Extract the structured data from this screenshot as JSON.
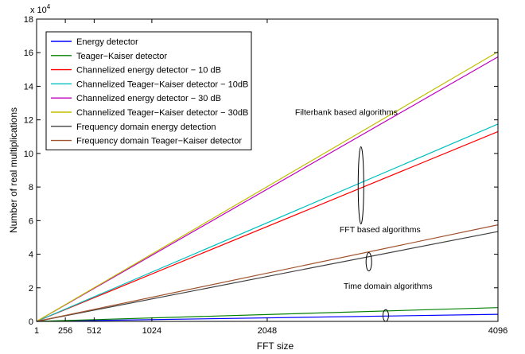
{
  "chart_data": {
    "type": "line",
    "xlabel": "FFT size",
    "ylabel": "Number of real multiplications",
    "y_exponent_label": "x 10",
    "y_exponent_power": "4",
    "xlim": [
      1,
      4096
    ],
    "ylim": [
      0,
      180000
    ],
    "x_ticks": [
      1,
      256,
      512,
      1024,
      2048,
      4096
    ],
    "y_ticks": [
      0,
      20000,
      40000,
      60000,
      80000,
      100000,
      120000,
      140000,
      160000,
      180000
    ],
    "y_tick_labels": [
      "0",
      "2",
      "4",
      "6",
      "8",
      "10",
      "12",
      "14",
      "16",
      "18"
    ],
    "grid": false,
    "legend_position": "top-left",
    "series": [
      {
        "name": "Energy detector",
        "color": "#0000ff",
        "x": [
          1,
          4096
        ],
        "y": [
          0,
          4200
        ]
      },
      {
        "name": "Teager−Kaiser detector",
        "color": "#008000",
        "x": [
          1,
          4096
        ],
        "y": [
          0,
          8200
        ]
      },
      {
        "name": "Channelized energy detector − 10 dB",
        "color": "#ff0000",
        "x": [
          1,
          4096
        ],
        "y": [
          0,
          113000
        ]
      },
      {
        "name": "Channelized Teager−Kaiser detector − 10dB",
        "color": "#00bfbf",
        "x": [
          1,
          4096
        ],
        "y": [
          0,
          117500
        ]
      },
      {
        "name": "Channelized energy detector − 30 dB",
        "color": "#bf00bf",
        "x": [
          1,
          4096
        ],
        "y": [
          0,
          157500
        ]
      },
      {
        "name": "Channelized Teager−Kaiser detector − 30dB",
        "color": "#bfbf00",
        "x": [
          1,
          4096
        ],
        "y": [
          0,
          160500
        ]
      },
      {
        "name": "Frequency domain energy detection",
        "color": "#404040",
        "x": [
          1,
          4096
        ],
        "y": [
          0,
          53500
        ]
      },
      {
        "name": "Frequency domain Teager−Kaiser detector",
        "color": "#a0522d",
        "x": [
          1,
          4096
        ],
        "y": [
          0,
          57500
        ]
      }
    ],
    "annotations": [
      {
        "text": "Filterbank based algorithms",
        "x": 2750,
        "y": 123000,
        "ellipse_x": 2880,
        "ellipse_y_range": [
          58000,
          104000
        ]
      },
      {
        "text": "FFT based algorithms",
        "x": 3050,
        "y": 53000,
        "ellipse_x": 2950,
        "ellipse_y_range": [
          30000,
          41000
        ]
      },
      {
        "text": "Time domain algorithms",
        "x": 3120,
        "y": 19500,
        "ellipse_x": 3100,
        "ellipse_y_range": [
          0,
          7000
        ]
      }
    ]
  }
}
